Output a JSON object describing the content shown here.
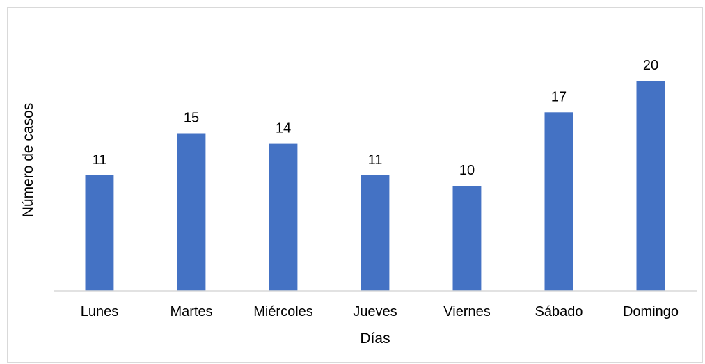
{
  "chart_data": {
    "type": "bar",
    "title": "",
    "xlabel": "Días",
    "ylabel": "Número de casos",
    "categories": [
      "Lunes",
      "Martes",
      "Miércoles",
      "Jueves",
      "Viernes",
      "Sábado",
      "Domingo"
    ],
    "values": [
      11,
      15,
      14,
      11,
      10,
      17,
      20
    ],
    "data_labels": [
      "11",
      "15",
      "14",
      "11",
      "10",
      "17",
      "20"
    ],
    "ylim": [
      0,
      20
    ],
    "grid": false,
    "legend": "none",
    "colors": {
      "bar": "#4472C4",
      "axis": "#d9d9d9"
    }
  }
}
